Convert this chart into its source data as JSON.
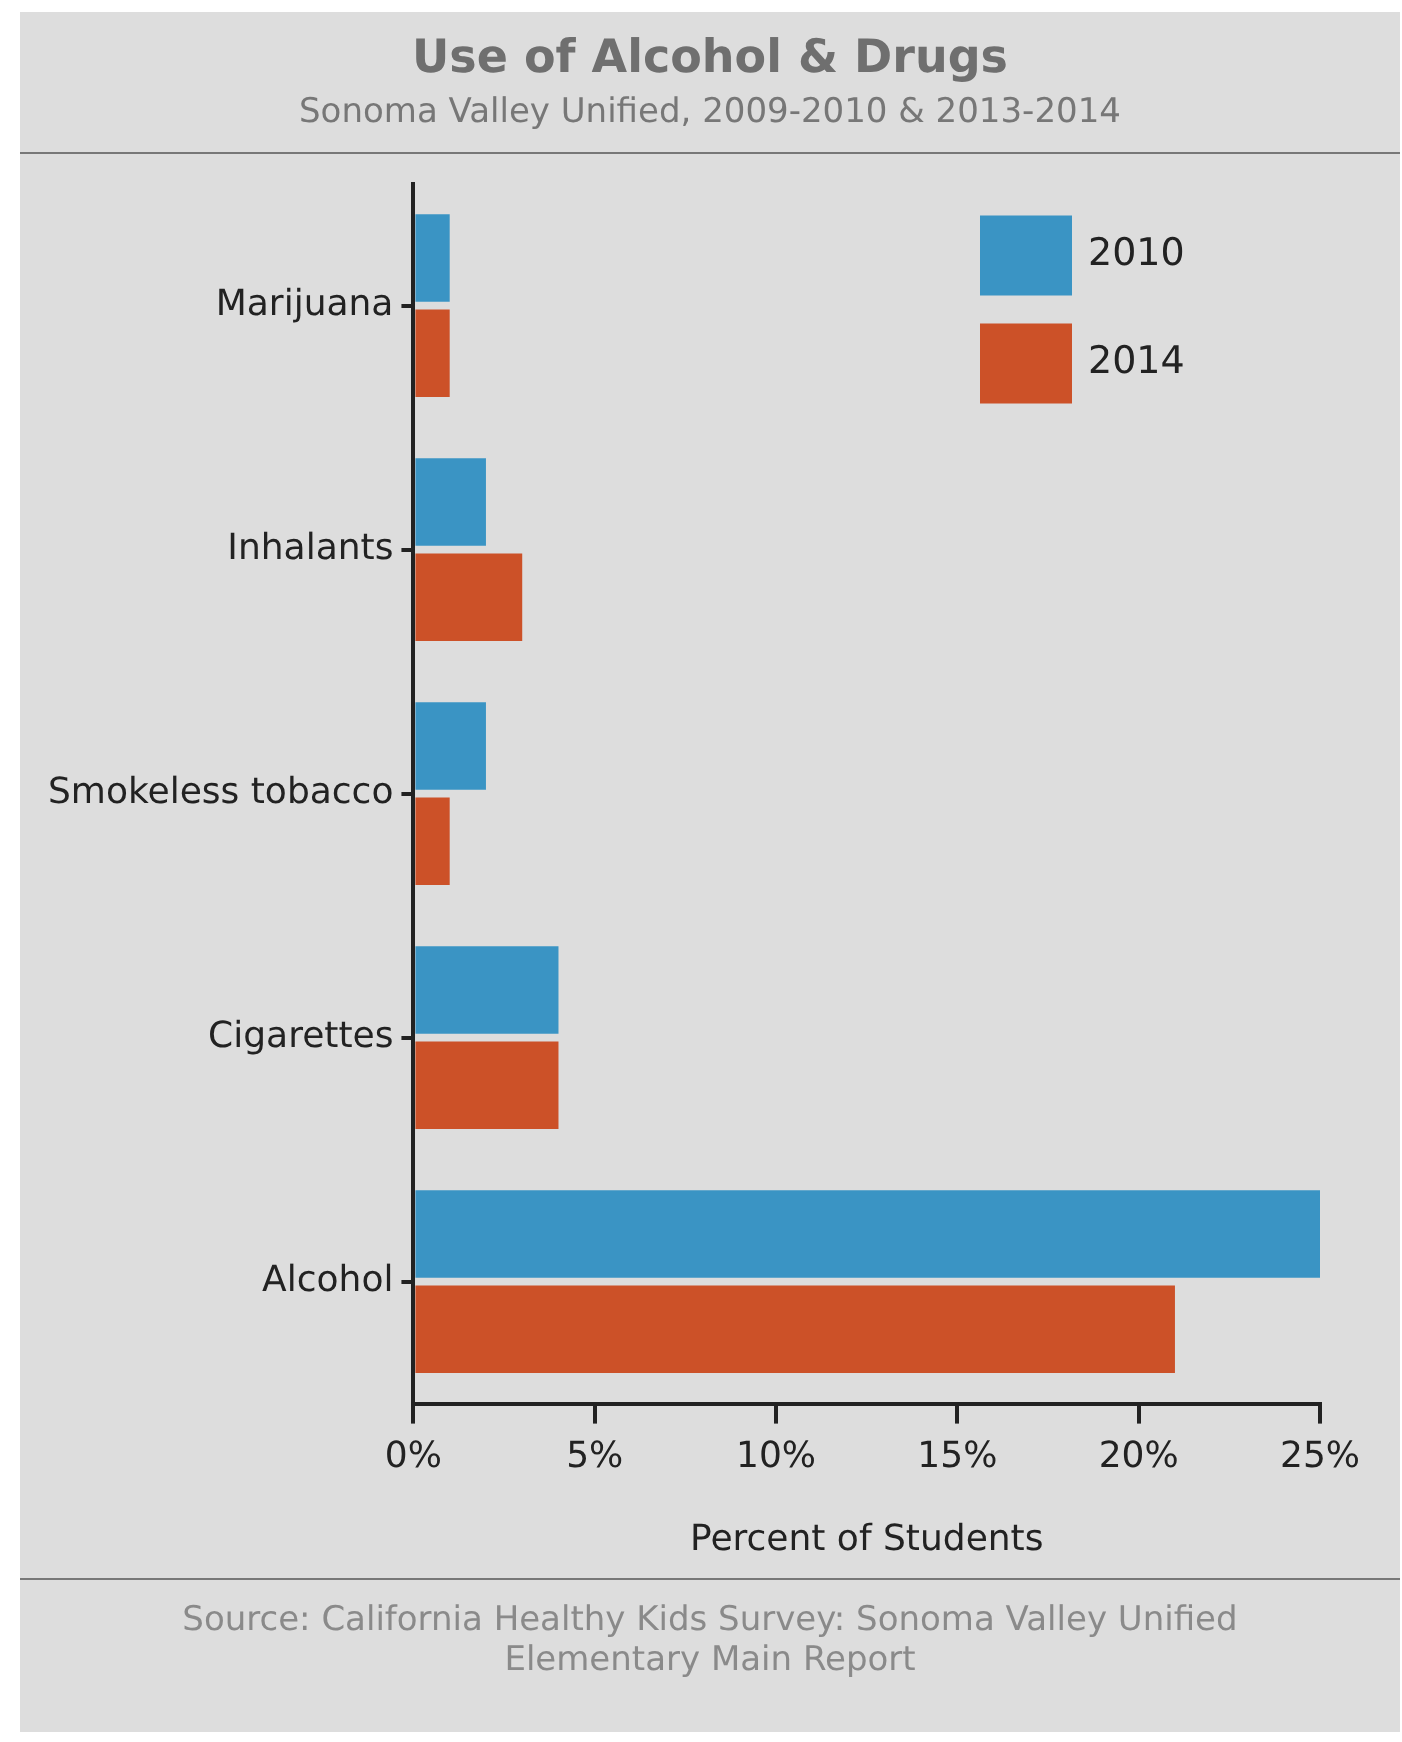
{
  "chart_data": {
    "type": "bar",
    "orientation": "horizontal",
    "title": "Use of Alcohol & Drugs",
    "subtitle": "Sonoma Valley Unified, 2009-2010 & 2013-2014",
    "xlabel": "Percent of Students",
    "annotations": [
      "Source: California Healthy Kids Survey: Sonoma Valley Unified Elementary Main Report"
    ],
    "categories": [
      "Marijuana",
      "Inhalants",
      "Smokeless tobacco",
      "Cigarettes",
      "Alcohol"
    ],
    "series": [
      {
        "name": "2010",
        "color": "#3a94c4",
        "values": [
          1,
          2,
          2,
          4,
          25
        ]
      },
      {
        "name": "2014",
        "color": "#cc5128",
        "values": [
          1,
          3,
          1,
          4,
          21
        ]
      }
    ],
    "xlim": [
      0,
      25
    ],
    "xticks": [
      {
        "value": 0,
        "label": "0%"
      },
      {
        "value": 5,
        "label": "5%"
      },
      {
        "value": 10,
        "label": "10%"
      },
      {
        "value": 15,
        "label": "15%"
      },
      {
        "value": 20,
        "label": "20%"
      },
      {
        "value": 25,
        "label": "25%"
      }
    ],
    "grid": false,
    "legend": "top right"
  }
}
